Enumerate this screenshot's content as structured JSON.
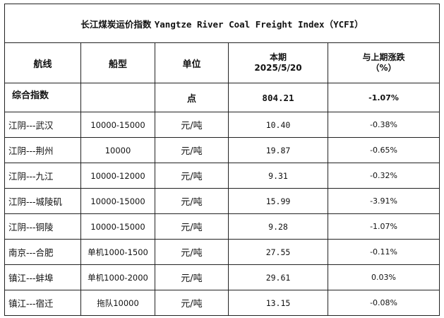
{
  "title": {
    "cn": "长江煤炭运价指数",
    "en": "Yangtze River Coal Freight Index（YCFI）"
  },
  "headers": {
    "route": "航线",
    "ship": "船型",
    "unit": "单位",
    "current_line1": "本期",
    "current_line2": "2025/5/20",
    "change_line1": "与上期涨跌",
    "change_line2": "（%）"
  },
  "composite": {
    "name": "综合指数",
    "ship": "",
    "unit": "点",
    "value": "804.21",
    "change": "-1.07%"
  },
  "rows": [
    {
      "route": "江阴---武汉",
      "ship": "10000-15000",
      "unit": "元/吨",
      "value": "10.40",
      "change": "-0.38%"
    },
    {
      "route": "江阴---荆州",
      "ship": "10000",
      "unit": "元/吨",
      "value": "19.87",
      "change": "-0.65%"
    },
    {
      "route": "江阴---九江",
      "ship": "10000-12000",
      "unit": "元/吨",
      "value": "9.31",
      "change": "-0.32%"
    },
    {
      "route": "江阴---城陵矶",
      "ship": "10000-15000",
      "unit": "元/吨",
      "value": "15.99",
      "change": "-3.91%"
    },
    {
      "route": "江阴---铜陵",
      "ship": "10000-15000",
      "unit": "元/吨",
      "value": "9.28",
      "change": "-1.07%"
    },
    {
      "route": "南京---合肥",
      "ship": "单机1000-1500",
      "unit": "元/吨",
      "value": "27.55",
      "change": "-0.11%"
    },
    {
      "route": "镇江---蚌埠",
      "ship": "单机1000-2000",
      "unit": "元/吨",
      "value": "29.61",
      "change": "0.03%"
    },
    {
      "route": "镇江---宿迁",
      "ship": "拖队10000",
      "unit": "元/吨",
      "value": "13.15",
      "change": "-0.08%"
    }
  ]
}
